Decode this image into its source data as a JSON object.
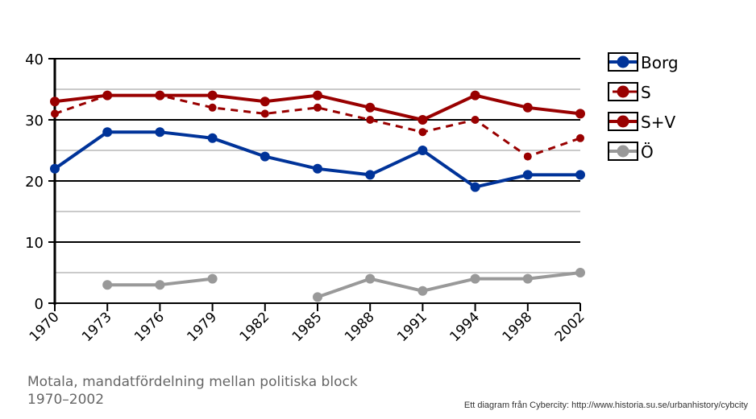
{
  "chart_data": {
    "type": "line",
    "title": "Motala, mandatfördelning mellan politiska block 1970-2002",
    "xlabel": "",
    "ylabel": "",
    "categories": [
      "1970",
      "1973",
      "1976",
      "1979",
      "1982",
      "1985",
      "1988",
      "1991",
      "1994",
      "1998",
      "2002"
    ],
    "ylim": [
      0,
      40
    ],
    "yticks": [
      "0",
      "10",
      "20",
      "30",
      "40"
    ],
    "grid": true,
    "legend_position": "right",
    "series": [
      {
        "name": "Borg",
        "color": "#003399",
        "dashed": false,
        "values": [
          22,
          28,
          28,
          27,
          24,
          22,
          21,
          25,
          19,
          21,
          21
        ]
      },
      {
        "name": "S",
        "color": "#990000",
        "dashed": true,
        "values": [
          31,
          34,
          34,
          32,
          31,
          32,
          30,
          28,
          30,
          24,
          27
        ]
      },
      {
        "name": "S+V",
        "color": "#990000",
        "dashed": false,
        "values": [
          33,
          34,
          34,
          34,
          33,
          34,
          32,
          30,
          34,
          32,
          31
        ]
      },
      {
        "name": "Ö",
        "color": "#999999",
        "dashed": false,
        "values": [
          null,
          3,
          3,
          4,
          null,
          1,
          4,
          2,
          4,
          4,
          5
        ]
      }
    ]
  },
  "caption": "Motala, mandatfördelning mellan politiska block 1970–2002",
  "credit": "Ett diagram från Cybercity: http://www.historia.su.se/urbanhistory/cybcity"
}
